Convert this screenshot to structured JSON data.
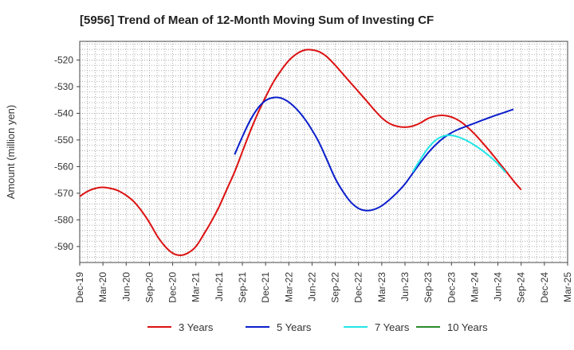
{
  "chart_data": {
    "type": "line",
    "title": "[5956]  Trend of Mean of 12-Month Moving Sum of Investing CF",
    "xlabel": "",
    "ylabel": "Amount (million yen)",
    "ylim": [
      -596,
      -513
    ],
    "yticks": [
      -590,
      -580,
      -570,
      -560,
      -550,
      -540,
      -530,
      -520
    ],
    "x_tick_labels": [
      "Dec-19",
      "Mar-20",
      "Jun-20",
      "Sep-20",
      "Dec-20",
      "Mar-21",
      "Jun-21",
      "Sep-21",
      "Dec-21",
      "Mar-22",
      "Jun-22",
      "Sep-22",
      "Dec-22",
      "Mar-23",
      "Jun-23",
      "Sep-23",
      "Dec-23",
      "Mar-24",
      "Jun-24",
      "Sep-24",
      "Dec-24",
      "Mar-25"
    ],
    "x_range_months": [
      0,
      63
    ],
    "grid": true,
    "legend_position": "bottom",
    "series": [
      {
        "name": "3 Years",
        "color": "#dd1111",
        "points": [
          [
            0,
            -571.2
          ],
          [
            1,
            -569.3
          ],
          [
            2,
            -568.2
          ],
          [
            3,
            -567.8
          ],
          [
            4,
            -568.2
          ],
          [
            5,
            -569.1
          ],
          [
            6,
            -570.8
          ],
          [
            7,
            -573.2
          ],
          [
            8,
            -576.7
          ],
          [
            9,
            -581.0
          ],
          [
            10,
            -586.0
          ],
          [
            11,
            -589.9
          ],
          [
            12,
            -592.5
          ],
          [
            13,
            -593.3
          ],
          [
            14,
            -592.4
          ],
          [
            15,
            -590.0
          ],
          [
            16,
            -585.5
          ],
          [
            17,
            -580.6
          ],
          [
            18,
            -575.0
          ],
          [
            19,
            -568.5
          ],
          [
            20,
            -562.0
          ],
          [
            21,
            -554.4
          ],
          [
            22,
            -546.9
          ],
          [
            23,
            -540.0
          ],
          [
            24,
            -533.9
          ],
          [
            25,
            -528.3
          ],
          [
            26,
            -523.9
          ],
          [
            27,
            -520.2
          ],
          [
            28,
            -517.7
          ],
          [
            29,
            -516.3
          ],
          [
            30,
            -516.2
          ],
          [
            31,
            -517.0
          ],
          [
            32,
            -519.0
          ],
          [
            33,
            -522.0
          ],
          [
            34,
            -525.3
          ],
          [
            35,
            -528.6
          ],
          [
            36,
            -531.9
          ],
          [
            37,
            -535.2
          ],
          [
            38,
            -538.6
          ],
          [
            39,
            -541.7
          ],
          [
            40,
            -543.8
          ],
          [
            41,
            -544.9
          ],
          [
            42,
            -545.2
          ],
          [
            43,
            -544.8
          ],
          [
            44,
            -543.6
          ],
          [
            45,
            -541.9
          ],
          [
            46,
            -541.0
          ],
          [
            47,
            -540.8
          ],
          [
            48,
            -541.4
          ],
          [
            49,
            -542.8
          ],
          [
            50,
            -545.0
          ],
          [
            51,
            -547.8
          ],
          [
            52,
            -551.0
          ],
          [
            53,
            -554.4
          ],
          [
            54,
            -558.0
          ],
          [
            55,
            -561.6
          ],
          [
            56,
            -565.3
          ],
          [
            57,
            -568.7
          ]
        ]
      },
      {
        "name": "5 Years",
        "color": "#0a1ecc",
        "points": [
          [
            20,
            -555.5
          ],
          [
            21,
            -548.8
          ],
          [
            22,
            -542.7
          ],
          [
            23,
            -538.1
          ],
          [
            24,
            -535.2
          ],
          [
            25,
            -534.1
          ],
          [
            26,
            -534.3
          ],
          [
            27,
            -535.8
          ],
          [
            28,
            -538.4
          ],
          [
            29,
            -541.9
          ],
          [
            30,
            -546.3
          ],
          [
            31,
            -551.5
          ],
          [
            32,
            -558.0
          ],
          [
            33,
            -564.5
          ],
          [
            34,
            -569.4
          ],
          [
            35,
            -573.3
          ],
          [
            36,
            -575.7
          ],
          [
            37,
            -576.5
          ],
          [
            38,
            -576.1
          ],
          [
            39,
            -574.7
          ],
          [
            40,
            -572.4
          ],
          [
            41,
            -569.7
          ],
          [
            42,
            -566.5
          ],
          [
            43,
            -562.5
          ],
          [
            44,
            -558.5
          ],
          [
            45,
            -554.8
          ],
          [
            46,
            -551.7
          ],
          [
            47,
            -549.2
          ],
          [
            48,
            -547.3
          ],
          [
            49,
            -545.9
          ],
          [
            50,
            -544.8
          ],
          [
            51,
            -543.7
          ],
          [
            52,
            -542.6
          ],
          [
            53,
            -541.5
          ],
          [
            54,
            -540.5
          ],
          [
            55,
            -539.5
          ],
          [
            56,
            -538.5
          ]
        ]
      },
      {
        "name": "7 Years",
        "color": "#22e6e6",
        "points": [
          [
            43,
            -562.0
          ],
          [
            44,
            -557.3
          ],
          [
            45,
            -553.0
          ],
          [
            46,
            -550.0
          ],
          [
            47,
            -548.5
          ],
          [
            48,
            -548.3
          ],
          [
            49,
            -549.0
          ],
          [
            50,
            -550.3
          ],
          [
            51,
            -552.0
          ],
          [
            52,
            -554.0
          ],
          [
            53,
            -556.3
          ],
          [
            54,
            -559.0
          ],
          [
            55,
            -562.2
          ]
        ]
      },
      {
        "name": "10 Years",
        "color": "#2a8a2a",
        "points": []
      }
    ]
  }
}
